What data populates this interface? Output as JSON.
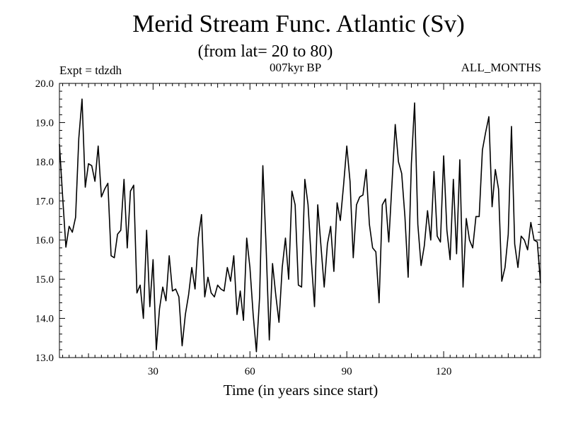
{
  "header": {
    "title": "Merid Stream Func. Atlantic (Sv)",
    "subtitle": "(from lat= 20 to 80)",
    "expt": "Expt = tdzdh",
    "period": "007kyr BP",
    "months": "ALL_MONTHS"
  },
  "chart_data": {
    "type": "line",
    "title": "Merid Stream Func. Atlantic (Sv)",
    "subtitle": "(from lat= 20 to 80)",
    "xlabel": "Time (in years since start)",
    "ylabel": "",
    "xlim": [
      1,
      150
    ],
    "ylim": [
      13.0,
      20.0
    ],
    "xticks": [
      30,
      60,
      90,
      120
    ],
    "xtick_labels": [
      "30",
      "60",
      "90",
      "120"
    ],
    "yticks": [
      13.0,
      14.0,
      15.0,
      16.0,
      17.0,
      18.0,
      19.0,
      20.0
    ],
    "ytick_labels": [
      "13.0",
      "14.0",
      "15.0",
      "16.0",
      "17.0",
      "18.0",
      "19.0",
      "20.0"
    ],
    "grid": false,
    "series": [
      {
        "name": "Merid Stream Func. Atlantic",
        "color": "#000000",
        "x": [
          1,
          2,
          3,
          4,
          5,
          6,
          7,
          8,
          9,
          10,
          11,
          12,
          13,
          14,
          15,
          16,
          17,
          18,
          19,
          20,
          21,
          22,
          23,
          24,
          25,
          26,
          27,
          28,
          29,
          30,
          31,
          32,
          33,
          34,
          35,
          36,
          37,
          38,
          39,
          40,
          41,
          42,
          43,
          44,
          45,
          46,
          47,
          48,
          49,
          50,
          51,
          52,
          53,
          54,
          55,
          56,
          57,
          58,
          59,
          60,
          61,
          62,
          63,
          64,
          65,
          66,
          67,
          68,
          69,
          70,
          71,
          72,
          73,
          74,
          75,
          76,
          77,
          78,
          79,
          80,
          81,
          82,
          83,
          84,
          85,
          86,
          87,
          88,
          89,
          90,
          91,
          92,
          93,
          94,
          95,
          96,
          97,
          98,
          99,
          100,
          101,
          102,
          103,
          104,
          105,
          106,
          107,
          108,
          109,
          110,
          111,
          112,
          113,
          114,
          115,
          116,
          117,
          118,
          119,
          120,
          121,
          122,
          123,
          124,
          125,
          126,
          127,
          128,
          129,
          130,
          131,
          132,
          133,
          134,
          135,
          136,
          137,
          138,
          139,
          140,
          141,
          142,
          143,
          144,
          145,
          146,
          147,
          148,
          149,
          150
        ],
        "values": [
          18.45,
          17.1,
          15.82,
          16.35,
          16.2,
          16.58,
          18.6,
          19.6,
          17.35,
          17.95,
          17.9,
          17.5,
          18.4,
          17.1,
          17.3,
          17.45,
          15.6,
          15.55,
          16.15,
          16.25,
          17.55,
          15.8,
          17.25,
          17.4,
          14.65,
          14.85,
          14.0,
          16.25,
          14.3,
          15.5,
          13.2,
          14.25,
          14.8,
          14.45,
          15.6,
          14.7,
          14.75,
          14.55,
          13.3,
          14.1,
          14.6,
          15.3,
          14.75,
          16.05,
          16.65,
          14.55,
          15.05,
          14.65,
          14.55,
          14.85,
          14.75,
          14.7,
          15.3,
          14.95,
          15.6,
          14.1,
          14.7,
          13.95,
          16.05,
          15.3,
          14.1,
          13.15,
          14.55,
          17.9,
          15.85,
          13.45,
          15.4,
          14.6,
          13.9,
          15.3,
          16.05,
          15.0,
          17.25,
          16.9,
          14.85,
          14.8,
          17.55,
          16.9,
          15.5,
          14.3,
          16.9,
          15.85,
          14.8,
          15.9,
          16.35,
          15.2,
          16.95,
          16.5,
          17.4,
          18.4,
          17.5,
          15.55,
          16.9,
          17.1,
          17.15,
          17.8,
          16.4,
          15.8,
          15.7,
          14.4,
          16.9,
          17.05,
          15.95,
          17.45,
          18.95,
          18.0,
          17.7,
          16.6,
          15.05,
          17.95,
          19.5,
          16.4,
          15.35,
          15.85,
          16.75,
          16.0,
          17.75,
          16.1,
          15.95,
          18.15,
          16.25,
          15.5,
          17.55,
          15.65,
          18.05,
          14.8,
          16.55,
          16.0,
          15.8,
          16.6,
          16.6,
          18.3,
          18.75,
          19.15,
          16.85,
          17.8,
          17.3,
          14.95,
          15.3,
          16.15,
          18.9,
          15.9,
          15.3,
          16.1,
          16.0,
          15.75,
          16.45,
          16.0,
          15.95,
          14.9
        ]
      }
    ]
  }
}
